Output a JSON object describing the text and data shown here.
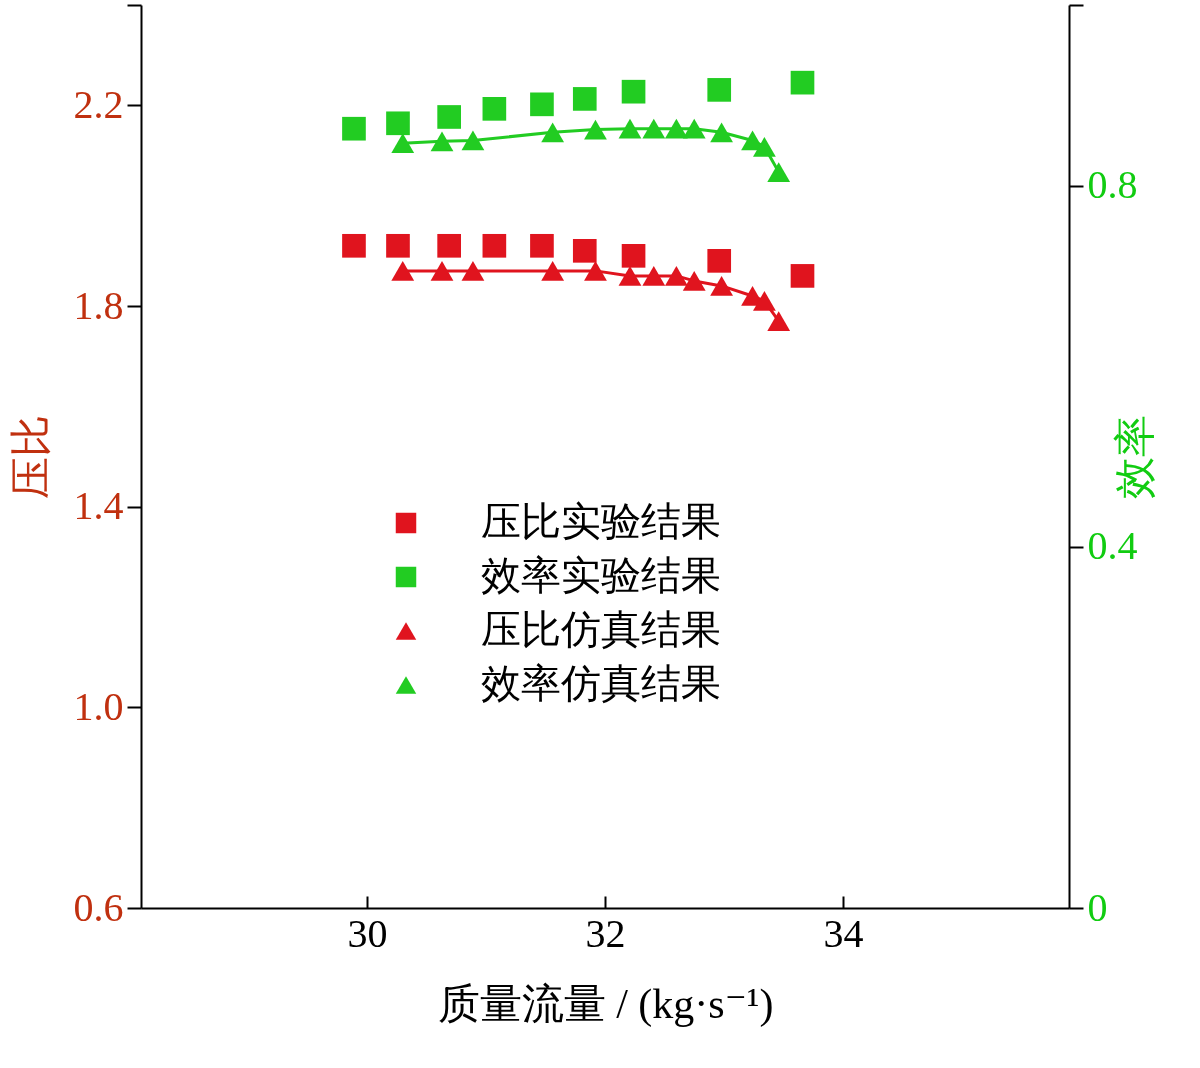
{
  "chart_data": {
    "type": "scatter",
    "xlabel": "质量流量 / (kg·s⁻¹)",
    "ylabel": "压比",
    "y2label": "效率",
    "xlim": [
      28.1,
      35.9
    ],
    "xticks": [
      30,
      32,
      34
    ],
    "ylim": [
      0.6,
      2.4
    ],
    "yticks": [
      0.6,
      {
        "value": 1,
        "label": "1.0"
      },
      1.4,
      1.8,
      2.2,
      {
        "value": 2.4,
        "label": null
      }
    ],
    "y2lim": [
      0,
      1
    ],
    "y2ticks": [
      0,
      0.4,
      0.8,
      {
        "value": 1,
        "label": null
      }
    ],
    "legend": "center",
    "series": [
      {
        "name": "压比实验结果",
        "marker": "square",
        "color": "#e0141e",
        "x": [
          29.89,
          30.26,
          30.69,
          31.07,
          31.47,
          31.83,
          32.24,
          32.96,
          33.66
        ],
        "values": [
          1.92,
          1.92,
          1.92,
          1.92,
          1.92,
          1.91,
          1.9,
          1.89,
          1.86
        ]
      },
      {
        "name": "效率实验结果",
        "marker": "square",
        "color": "#22cc22",
        "axis": "y2",
        "x": [
          29.89,
          30.26,
          30.69,
          31.07,
          31.47,
          31.83,
          32.24,
          32.96,
          33.66
        ],
        "values": [
          0.863,
          0.869,
          0.876,
          0.885,
          0.89,
          0.896,
          0.904,
          0.906,
          0.914
        ]
      },
      {
        "name": "压比仿真结果",
        "type": "line",
        "marker": "triangle",
        "color": "#e0141e",
        "x": [
          30.3,
          30.63,
          30.89,
          31.56,
          31.92,
          32.21,
          32.41,
          32.6,
          32.75,
          32.98,
          33.24,
          33.34,
          33.46
        ],
        "values": [
          1.87,
          1.87,
          1.87,
          1.87,
          1.87,
          1.86,
          1.86,
          1.86,
          1.85,
          1.84,
          1.82,
          1.81,
          1.77
        ]
      },
      {
        "name": "效率仿真结果",
        "type": "line",
        "marker": "triangle",
        "color": "#22cc22",
        "axis": "y2",
        "x": [
          30.3,
          30.63,
          30.89,
          31.56,
          31.92,
          32.21,
          32.41,
          32.6,
          32.75,
          32.98,
          33.24,
          33.34,
          33.46
        ],
        "values": [
          0.847,
          0.849,
          0.85,
          0.859,
          0.862,
          0.863,
          0.863,
          0.863,
          0.863,
          0.859,
          0.85,
          0.843,
          0.815
        ]
      }
    ]
  }
}
